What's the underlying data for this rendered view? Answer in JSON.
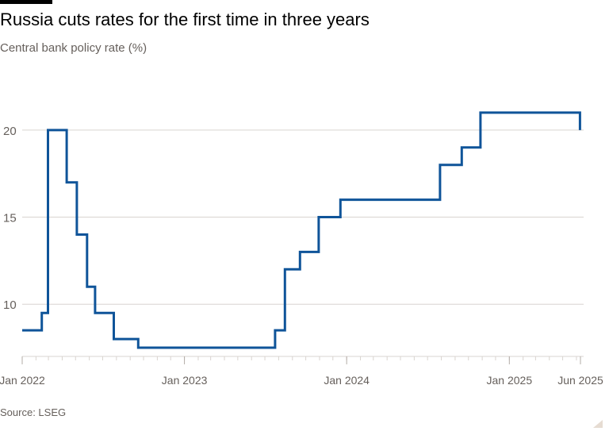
{
  "header": {
    "title": "Russia cuts rates for the first time in three years",
    "subtitle": "Central bank policy rate (%)"
  },
  "footer": {
    "source": "Source: LSEG"
  },
  "colors": {
    "line": "#0f5499",
    "grid": "#d9d4d0",
    "tick_text": "#66605c"
  },
  "chart_data": {
    "type": "line",
    "title": "Russia cuts rates for the first time in three years",
    "subtitle": "Central bank policy rate (%)",
    "xlabel": "",
    "ylabel": "",
    "x_range": [
      "2022-01-01",
      "2025-06-10"
    ],
    "ylim": [
      7,
      22
    ],
    "y_ticks": [
      {
        "value": 10,
        "label": "10"
      },
      {
        "value": 15,
        "label": "15"
      },
      {
        "value": 20,
        "label": "20"
      }
    ],
    "x_ticks": [
      {
        "date": "2022-01-01",
        "label": "Jan 2022"
      },
      {
        "date": "2023-01-01",
        "label": "Jan 2023"
      },
      {
        "date": "2024-01-01",
        "label": "Jan 2024"
      },
      {
        "date": "2025-01-01",
        "label": "Jan 2025"
      },
      {
        "date": "2025-06-10",
        "label": "Jun 2025"
      }
    ],
    "grid": true,
    "legend": "none",
    "series": [
      {
        "step": true,
        "points": [
          {
            "date": "2022-01-01",
            "rate": 8.5
          },
          {
            "date": "2022-02-14",
            "rate": 9.5
          },
          {
            "date": "2022-02-28",
            "rate": 20
          },
          {
            "date": "2022-04-11",
            "rate": 17
          },
          {
            "date": "2022-05-04",
            "rate": 14
          },
          {
            "date": "2022-05-27",
            "rate": 11
          },
          {
            "date": "2022-06-14",
            "rate": 9.5
          },
          {
            "date": "2022-07-26",
            "rate": 8
          },
          {
            "date": "2022-09-19",
            "rate": 7.5
          },
          {
            "date": "2023-07-24",
            "rate": 8.5
          },
          {
            "date": "2023-08-15",
            "rate": 12
          },
          {
            "date": "2023-09-18",
            "rate": 13
          },
          {
            "date": "2023-10-30",
            "rate": 15
          },
          {
            "date": "2023-12-18",
            "rate": 16
          },
          {
            "date": "2024-07-29",
            "rate": 18
          },
          {
            "date": "2024-09-16",
            "rate": 19
          },
          {
            "date": "2024-10-28",
            "rate": 21
          },
          {
            "date": "2025-06-09",
            "rate": 20
          }
        ]
      }
    ]
  }
}
